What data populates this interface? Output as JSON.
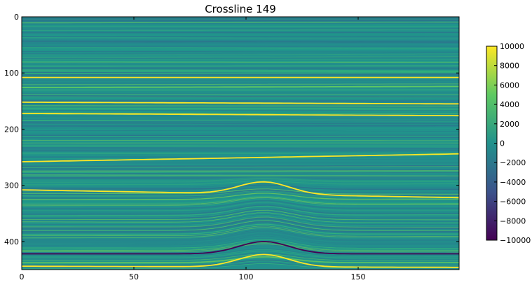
{
  "chart_data": {
    "type": "heatmap",
    "title": "Crossline 149",
    "xlabel": "",
    "ylabel": "",
    "xlim": [
      0,
      195
    ],
    "ylim": [
      450,
      0
    ],
    "x_ticks": [
      0,
      50,
      100,
      150
    ],
    "y_ticks": [
      0,
      100,
      200,
      300,
      400
    ],
    "colorbar": {
      "min": -10000,
      "max": 10000,
      "ticks": [
        10000,
        8000,
        6000,
        4000,
        2000,
        0,
        -2000,
        -4000,
        -6000,
        -8000,
        -10000
      ],
      "colormap": "viridis",
      "colors": [
        "#440154",
        "#3b528b",
        "#21918c",
        "#5ec962",
        "#fde725"
      ]
    },
    "grid": false,
    "reflectors": [
      {
        "depth_at_x0": 108,
        "depth_at_xmax": 108,
        "amplitude": 8000
      },
      {
        "depth_at_x0": 126,
        "depth_at_xmax": 124,
        "amplitude": 6000
      },
      {
        "depth_at_x0": 152,
        "depth_at_xmax": 155,
        "amplitude": 8500
      },
      {
        "depth_at_x0": 172,
        "depth_at_xmax": 176,
        "amplitude": 9000
      },
      {
        "depth_at_x0": 258,
        "depth_at_xmax": 244,
        "amplitude": 9000
      },
      {
        "depth_at_x0": 308,
        "depth_at_xmax": 322,
        "amplitude": 8000
      },
      {
        "depth_at_x0": 422,
        "depth_at_xmax": 422,
        "amplitude": -9000
      },
      {
        "depth_at_x0": 444,
        "depth_at_xmax": 446,
        "amplitude": 9000
      }
    ]
  }
}
